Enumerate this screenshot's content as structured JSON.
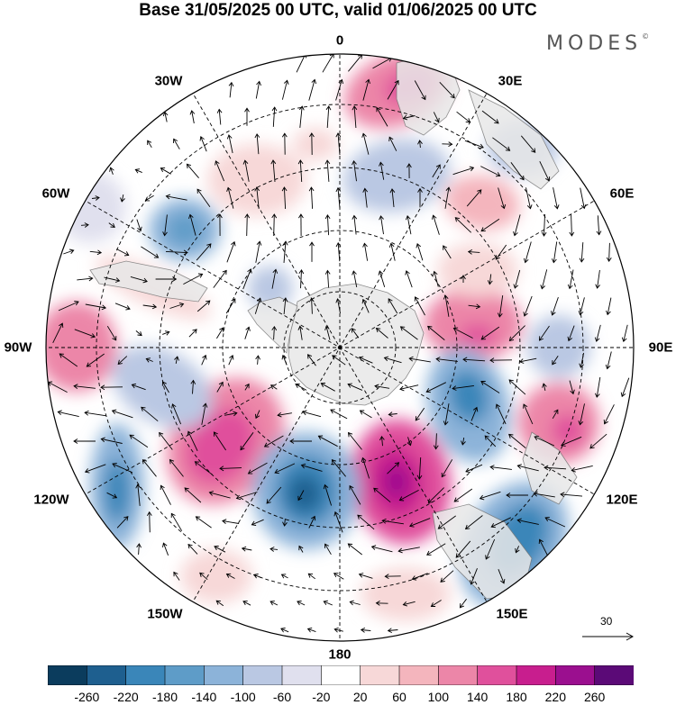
{
  "title": "Base 31/05/2025 00 UTC, valid 01/06/2025 00 UTC",
  "brand": "MODES",
  "brand_mark": "©",
  "longitude_labels": {
    "top": "0",
    "e30": "30E",
    "e60": "60E",
    "e90": "90E",
    "e120": "120E",
    "e150": "150E",
    "bottom": "180",
    "w150": "150W",
    "w120": "120W",
    "w90": "90W",
    "w60": "60W",
    "w30": "30W"
  },
  "reference_vector": {
    "label": "30"
  },
  "colorbar": {
    "colors": [
      "#0b3c5d",
      "#1e5f8f",
      "#3a86b9",
      "#5e9cc8",
      "#8cb3d9",
      "#bac8e3",
      "#e0e0ee",
      "#ffffff",
      "#f7d8d8",
      "#f4b5bd",
      "#ec86a8",
      "#e0509c",
      "#c81e8e",
      "#9b0f8f",
      "#5b0a77"
    ],
    "labels": [
      "-260",
      "-220",
      "-180",
      "-140",
      "-100",
      "-60",
      "-20",
      "20",
      "60",
      "100",
      "140",
      "180",
      "220",
      "260"
    ]
  },
  "map": {
    "projection": "south polar stereographic",
    "field": "vorticity anomaly with wind vectors",
    "land_color": "#e8e8e8",
    "coast_color": "#7a7a7a"
  }
}
